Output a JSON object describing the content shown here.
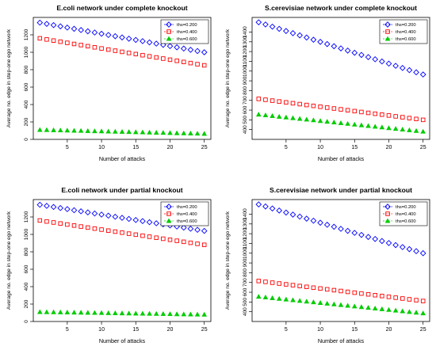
{
  "shared": {
    "xlabel": "Number of attacks",
    "ylabel": "Average no. edge in step-one ego network",
    "legend_labels": [
      "ths=0.200",
      "ths=0.400",
      "ths=0.600"
    ],
    "colors": [
      "#0000ff",
      "#ff0000",
      "#00cc00"
    ],
    "markers": [
      "diamond",
      "square",
      "triangle"
    ]
  },
  "chart_data": [
    {
      "type": "scatter",
      "title": "E.coli network under complete knockout",
      "xlabel": "Number of attacks",
      "ylabel": "Average no. edge in step-one ego network",
      "xlim": [
        1,
        25
      ],
      "ylim": [
        0,
        1400
      ],
      "xticks": [
        5,
        10,
        15,
        20,
        25
      ],
      "yticks": [
        0,
        200,
        400,
        600,
        800,
        1000,
        1200
      ],
      "x": [
        1,
        2,
        3,
        4,
        5,
        6,
        7,
        8,
        9,
        10,
        11,
        12,
        13,
        14,
        15,
        16,
        17,
        18,
        19,
        20,
        21,
        22,
        23,
        24,
        25
      ],
      "series": [
        {
          "name": "ths=0.200",
          "start": 1340,
          "end": 1000
        },
        {
          "name": "ths=0.400",
          "start": 1160,
          "end": 850
        },
        {
          "name": "ths=0.600",
          "start": 110,
          "end": 65
        }
      ],
      "legend": "top-right",
      "grid": false
    },
    {
      "type": "scatter",
      "title": "S.cerevisiae network under complete knockout",
      "xlabel": "Number of attacks",
      "ylabel": "Average no. edge in step-one ego network",
      "xlim": [
        1,
        25
      ],
      "ylim": [
        300,
        1550
      ],
      "xticks": [
        5,
        10,
        15,
        20,
        25
      ],
      "yticks": [
        400,
        500,
        600,
        700,
        800,
        900,
        1000,
        1100,
        1200,
        1300,
        1400
      ],
      "x": [
        1,
        2,
        3,
        4,
        5,
        6,
        7,
        8,
        9,
        10,
        11,
        12,
        13,
        14,
        15,
        16,
        17,
        18,
        19,
        20,
        21,
        22,
        23,
        24,
        25
      ],
      "series": [
        {
          "name": "ths=0.200",
          "start": 1500,
          "end": 965
        },
        {
          "name": "ths=0.400",
          "start": 715,
          "end": 500
        },
        {
          "name": "ths=0.600",
          "start": 555,
          "end": 380
        }
      ],
      "legend": "top-right",
      "grid": false
    },
    {
      "type": "scatter",
      "title": "E.coli network under partial knockout",
      "xlabel": "Number of attacks",
      "ylabel": "Average no. edge in step-one ego network",
      "xlim": [
        1,
        25
      ],
      "ylim": [
        0,
        1400
      ],
      "xticks": [
        5,
        10,
        15,
        20,
        25
      ],
      "yticks": [
        0,
        200,
        400,
        600,
        800,
        1000,
        1200
      ],
      "x": [
        1,
        2,
        3,
        4,
        5,
        6,
        7,
        8,
        9,
        10,
        11,
        12,
        13,
        14,
        15,
        16,
        17,
        18,
        19,
        20,
        21,
        22,
        23,
        24,
        25
      ],
      "series": [
        {
          "name": "ths=0.200",
          "start": 1340,
          "end": 1040
        },
        {
          "name": "ths=0.400",
          "start": 1160,
          "end": 880
        },
        {
          "name": "ths=0.600",
          "start": 110,
          "end": 80
        }
      ],
      "legend": "top-right",
      "grid": false
    },
    {
      "type": "scatter",
      "title": "S.cerevisiae network under partial knockout",
      "xlabel": "Number of attacks",
      "ylabel": "Average no. edge in step-one ego network",
      "xlim": [
        1,
        25
      ],
      "ylim": [
        300,
        1550
      ],
      "xticks": [
        5,
        10,
        15,
        20,
        25
      ],
      "yticks": [
        400,
        500,
        600,
        700,
        800,
        900,
        1000,
        1100,
        1200,
        1300,
        1400
      ],
      "x": [
        1,
        2,
        3,
        4,
        5,
        6,
        7,
        8,
        9,
        10,
        11,
        12,
        13,
        14,
        15,
        16,
        17,
        18,
        19,
        20,
        21,
        22,
        23,
        24,
        25
      ],
      "series": [
        {
          "name": "ths=0.200",
          "start": 1500,
          "end": 1000
        },
        {
          "name": "ths=0.400",
          "start": 715,
          "end": 510
        },
        {
          "name": "ths=0.600",
          "start": 555,
          "end": 385
        }
      ],
      "legend": "top-right",
      "grid": false
    }
  ]
}
